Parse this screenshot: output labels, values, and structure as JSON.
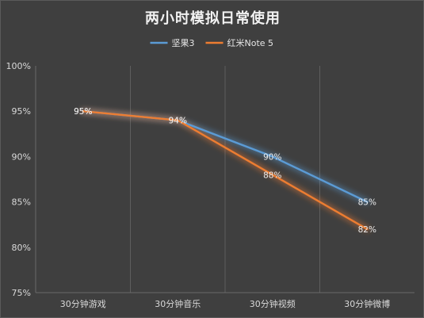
{
  "chart_data": {
    "type": "line",
    "title": "两小时模拟日常使用",
    "categories": [
      "30分钟游戏",
      "30分钟音乐",
      "30分钟视频",
      "30分钟微博"
    ],
    "series": [
      {
        "name": "坚果3",
        "values": [
          95,
          94,
          90,
          85
        ],
        "labels": [
          "95%",
          "94%",
          "90%",
          "85%"
        ],
        "color": "#5b9bd5"
      },
      {
        "name": "红米Note 5",
        "values": [
          95,
          94,
          88,
          82
        ],
        "labels": [
          "95%",
          "94%",
          "88%",
          "82%"
        ],
        "color": "#ed7d31"
      }
    ],
    "ylim": [
      75,
      100
    ],
    "y_ticks": [
      "75%",
      "80%",
      "85%",
      "90%",
      "95%",
      "100%"
    ],
    "grid": "vertical",
    "legend": "top-center"
  }
}
